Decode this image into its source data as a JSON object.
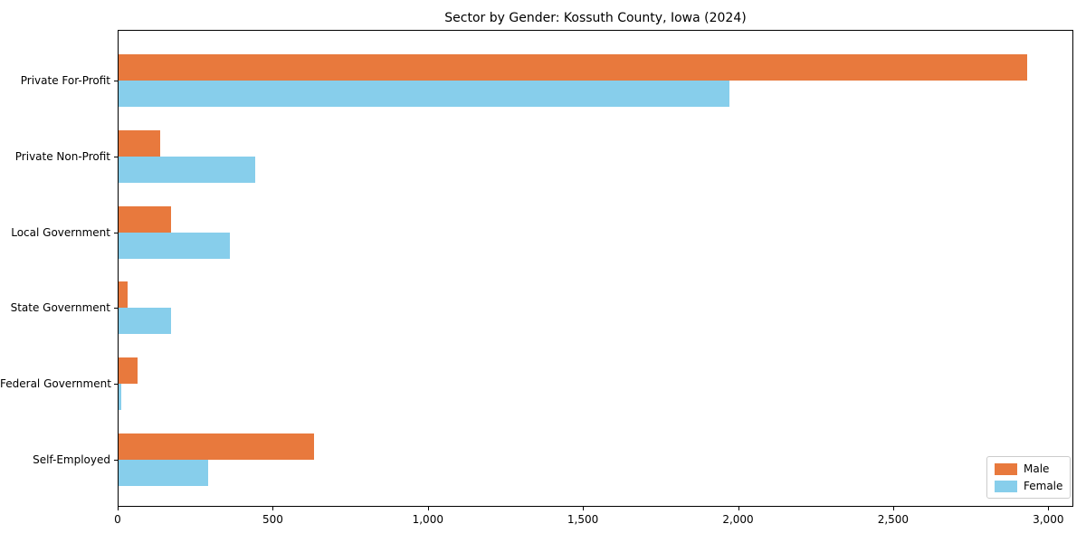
{
  "chart_data": {
    "type": "bar",
    "orientation": "horizontal",
    "title": "Sector by Gender: Kossuth County, Iowa (2024)",
    "categories": [
      "Private For-Profit",
      "Private Non-Profit",
      "Local Government",
      "State Government",
      "Federal Government",
      "Self-Employed"
    ],
    "series": [
      {
        "name": "Male",
        "color": "#e8793d",
        "values": [
          2930,
          135,
          170,
          30,
          60,
          630
        ]
      },
      {
        "name": "Female",
        "color": "#87ceeb",
        "values": [
          1970,
          440,
          360,
          170,
          10,
          290
        ]
      }
    ],
    "xlabel": "",
    "ylabel": "",
    "xlim": [
      0,
      3075
    ],
    "xticks": [
      0,
      500,
      1000,
      1500,
      2000,
      2500,
      3000
    ],
    "xtick_labels": [
      "0",
      "500",
      "1,000",
      "1,500",
      "2,000",
      "2,500",
      "3,000"
    ],
    "grid": false,
    "legend": {
      "position": "lower right"
    },
    "colors": {
      "male": "#e8793d",
      "female": "#87ceeb",
      "spine": "#000000",
      "legend_border": "#cccccc"
    }
  }
}
